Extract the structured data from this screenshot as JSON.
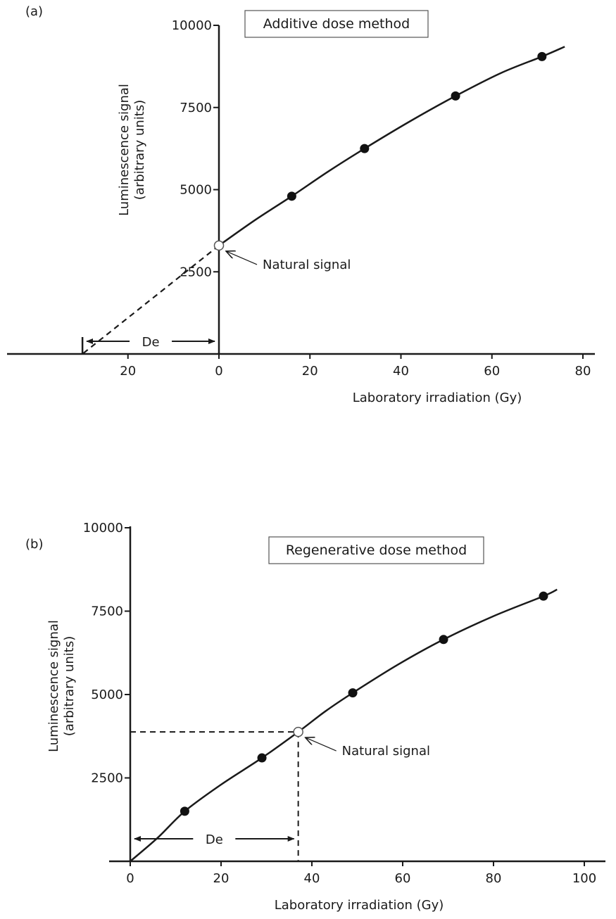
{
  "chart_data": [
    {
      "type": "line",
      "panel_label": "(a)",
      "title": "Additive dose method",
      "xlabel": "Laboratory irradiation (Gy)",
      "ylabel_line1": "Luminescence signal",
      "ylabel_line2": "(arbitrary units)",
      "xlim": [
        -30,
        80
      ],
      "ylim": [
        0,
        10000
      ],
      "x_ticks": [
        {
          "value": -20,
          "label": "20"
        },
        {
          "value": 0,
          "label": "0"
        },
        {
          "value": 20,
          "label": "20"
        },
        {
          "value": 40,
          "label": "40"
        },
        {
          "value": 60,
          "label": "60"
        },
        {
          "value": 80,
          "label": "80"
        }
      ],
      "y_ticks": [
        {
          "value": 2500,
          "label": "2500"
        },
        {
          "value": 5000,
          "label": "5000"
        },
        {
          "value": 7500,
          "label": "7500"
        },
        {
          "value": 10000,
          "label": "10000"
        }
      ],
      "points": [
        {
          "x": 16,
          "y": 4800
        },
        {
          "x": 32,
          "y": 6250
        },
        {
          "x": 52,
          "y": 7850
        },
        {
          "x": 71,
          "y": 9050
        }
      ],
      "curve": [
        {
          "x": 0,
          "y": 3300
        },
        {
          "x": 8,
          "y": 4080
        },
        {
          "x": 16,
          "y": 4800
        },
        {
          "x": 24,
          "y": 5550
        },
        {
          "x": 32,
          "y": 6250
        },
        {
          "x": 42,
          "y": 7080
        },
        {
          "x": 52,
          "y": 7850
        },
        {
          "x": 62,
          "y": 8550
        },
        {
          "x": 71,
          "y": 9050
        },
        {
          "x": 76,
          "y": 9350
        }
      ],
      "extrapolation": [
        {
          "x": 0,
          "y": 3300
        },
        {
          "x": -30,
          "y": 0
        }
      ],
      "natural": {
        "x": 0,
        "y": 3300,
        "label": "Natural signal"
      },
      "de": {
        "label": "De",
        "from": -30,
        "to": 0
      }
    },
    {
      "type": "line",
      "panel_label": "(b)",
      "title": "Regenerative dose method",
      "xlabel": "Laboratory irradiation (Gy)",
      "ylabel_line1": "Luminescence signal",
      "ylabel_line2": "(arbitrary units)",
      "xlim": [
        0,
        100
      ],
      "ylim": [
        0,
        10000
      ],
      "x_ticks": [
        {
          "value": 0,
          "label": "0"
        },
        {
          "value": 20,
          "label": "20"
        },
        {
          "value": 40,
          "label": "40"
        },
        {
          "value": 60,
          "label": "60"
        },
        {
          "value": 80,
          "label": "80"
        },
        {
          "value": 100,
          "label": "100"
        }
      ],
      "y_ticks": [
        {
          "value": 2500,
          "label": "2500"
        },
        {
          "value": 5000,
          "label": "5000"
        },
        {
          "value": 7500,
          "label": "7500"
        },
        {
          "value": 10000,
          "label": "10000"
        }
      ],
      "points": [
        {
          "x": 12,
          "y": 1500
        },
        {
          "x": 29,
          "y": 3100
        },
        {
          "x": 49,
          "y": 5050
        },
        {
          "x": 69,
          "y": 6650
        },
        {
          "x": 91,
          "y": 7950
        }
      ],
      "curve": [
        {
          "x": 0,
          "y": 0
        },
        {
          "x": 6,
          "y": 700
        },
        {
          "x": 12,
          "y": 1500
        },
        {
          "x": 20,
          "y": 2300
        },
        {
          "x": 29,
          "y": 3100
        },
        {
          "x": 37,
          "y": 3880
        },
        {
          "x": 43,
          "y": 4500
        },
        {
          "x": 49,
          "y": 5050
        },
        {
          "x": 59,
          "y": 5900
        },
        {
          "x": 69,
          "y": 6650
        },
        {
          "x": 80,
          "y": 7350
        },
        {
          "x": 91,
          "y": 7950
        },
        {
          "x": 94,
          "y": 8150
        }
      ],
      "natural": {
        "x": 37,
        "y": 3880,
        "label": "Natural signal"
      },
      "de": {
        "label": "De",
        "from": 0,
        "to": 37
      }
    }
  ]
}
